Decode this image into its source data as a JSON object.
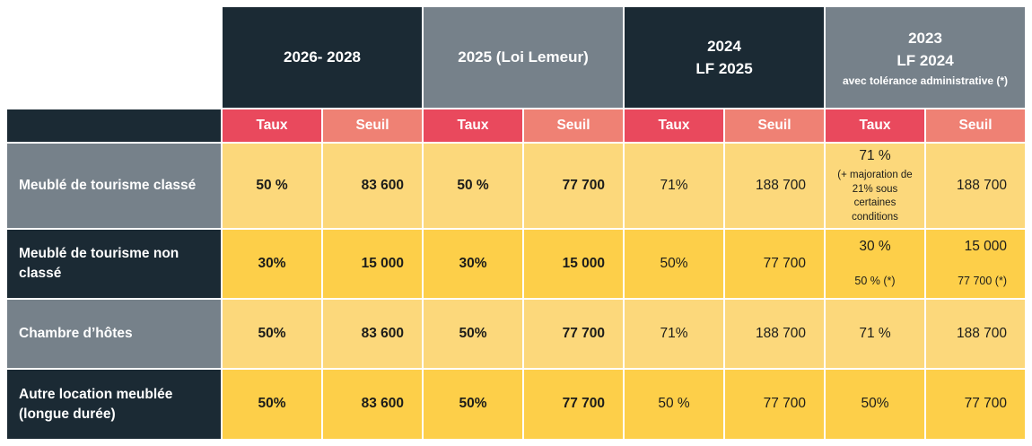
{
  "colors": {
    "dark": "#1b2a34",
    "gray": "#76818a",
    "red": "#e9495d",
    "salmon": "#ef8174",
    "yellowLight": "#fcd87b",
    "yellowGold": "#fdcf49",
    "textDark": "#1c1c1a",
    "textWhite": "#ffffff",
    "background": "#ffffff"
  },
  "table": {
    "groups": [
      {
        "line1": "2026- 2028",
        "line2": "",
        "sub": ""
      },
      {
        "line1": "2025 (Loi Lemeur)",
        "line2": "",
        "sub": ""
      },
      {
        "line1": "2024",
        "line2": "LF 2025",
        "sub": ""
      },
      {
        "line1": "2023",
        "line2": "LF 2024",
        "sub": "avec tolérance administrative (*)"
      }
    ],
    "subheaders": {
      "taux": "Taux",
      "seuil": "Seuil"
    },
    "rows": [
      {
        "label": "Meublé de tourisme classé",
        "cells": [
          {
            "main": "50 %"
          },
          {
            "main": "83 600"
          },
          {
            "main": "50 %"
          },
          {
            "main": "77 700"
          },
          {
            "main": "71%"
          },
          {
            "main": "188 700"
          },
          {
            "main": "71 %",
            "sub": "(+ majoration de 21% sous certaines conditions"
          },
          {
            "main": "188 700"
          }
        ]
      },
      {
        "label": "Meublé de tourisme non classé",
        "cells": [
          {
            "main": "30%"
          },
          {
            "main": "15 000"
          },
          {
            "main": "30%"
          },
          {
            "main": "15 000"
          },
          {
            "main": "50%"
          },
          {
            "main": "77 700"
          },
          {
            "main": "30 %",
            "sub": "50 % (*)"
          },
          {
            "main": "15 000",
            "sub": "77 700 (*)"
          }
        ]
      },
      {
        "label": "Chambre d’hôtes",
        "cells": [
          {
            "main": "50%"
          },
          {
            "main": "83 600"
          },
          {
            "main": "50%"
          },
          {
            "main": "77 700"
          },
          {
            "main": "71%"
          },
          {
            "main": "188 700"
          },
          {
            "main": "71 %"
          },
          {
            "main": "188 700"
          }
        ]
      },
      {
        "label": "Autre location meublée (longue durée)",
        "cells": [
          {
            "main": "50%"
          },
          {
            "main": "83 600"
          },
          {
            "main": "50%"
          },
          {
            "main": "77 700"
          },
          {
            "main": "50 %"
          },
          {
            "main": "77 700"
          },
          {
            "main": "50%"
          },
          {
            "main": "77 700"
          }
        ]
      }
    ]
  },
  "chart_data": {
    "type": "table",
    "title": "",
    "column_groups": [
      "2026- 2028",
      "2025 (Loi Lemeur)",
      "2024 LF 2025",
      "2023 LF 2024 avec tolérance administrative (*)"
    ],
    "sub_columns": [
      "Taux",
      "Seuil"
    ],
    "rows": [
      {
        "label": "Meublé de tourisme classé",
        "values": [
          "50 %",
          "83 600",
          "50 %",
          "77 700",
          "71%",
          "188 700",
          "71 % (+ majoration de 21% sous certaines conditions",
          "188 700"
        ]
      },
      {
        "label": "Meublé de tourisme non classé",
        "values": [
          "30%",
          "15 000",
          "30%",
          "15 000",
          "50%",
          "77 700",
          "30 % / 50 % (*)",
          "15 000 / 77 700 (*)"
        ]
      },
      {
        "label": "Chambre d’hôtes",
        "values": [
          "50%",
          "83 600",
          "50%",
          "77 700",
          "71%",
          "188 700",
          "71 %",
          "188 700"
        ]
      },
      {
        "label": "Autre location meublée (longue durée)",
        "values": [
          "50%",
          "83 600",
          "50%",
          "77 700",
          "50 %",
          "77 700",
          "50%",
          "77 700"
        ]
      }
    ]
  }
}
